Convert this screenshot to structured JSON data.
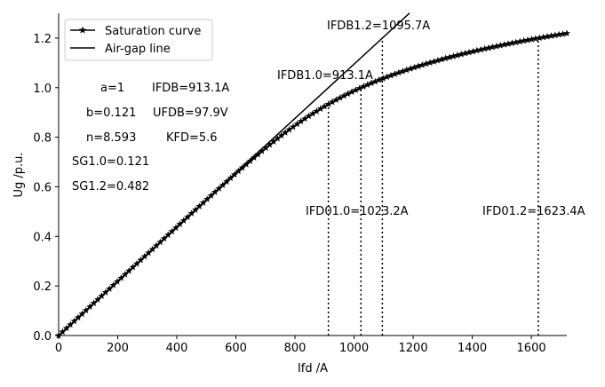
{
  "chart_data": {
    "type": "line",
    "xlabel": "Ifd /A",
    "ylabel": "Ug /p.u.",
    "xlim": [
      0,
      1720
    ],
    "ylim": [
      0,
      1.3
    ],
    "x_ticks": [
      0,
      200,
      400,
      600,
      800,
      1000,
      1200,
      1400,
      1600
    ],
    "y_ticks": [
      0.0,
      0.2,
      0.4,
      0.6,
      0.8,
      1.0,
      1.2
    ],
    "x_tick_labels": [
      "0",
      "200",
      "400",
      "600",
      "800",
      "1000",
      "1200",
      "1400",
      "1600"
    ],
    "y_tick_labels": [
      "0.0",
      "0.2",
      "0.4",
      "0.6",
      "0.8",
      "1.0",
      "1.2"
    ],
    "grid": false,
    "legend_position": "top-left",
    "series": [
      {
        "name": "Saturation curve",
        "marker": "star",
        "color": "#000000",
        "model": {
          "a": 1,
          "b": 0.121,
          "n": 8.593,
          "IFDB": 913.1
        },
        "x_range": [
          0,
          1720
        ],
        "points": 130
      },
      {
        "name": "Air-gap line",
        "marker": "none",
        "color": "#000000",
        "x": [
          0,
          1188
        ],
        "y": [
          0,
          1.301
        ]
      }
    ],
    "vertical_lines": [
      {
        "x": 913.1,
        "y": 0.932
      },
      {
        "x": 1023.2,
        "y": 1.0
      },
      {
        "x": 1095.7,
        "y": 1.2
      },
      {
        "x": 1623.4,
        "y": 1.2
      }
    ],
    "annotations": [
      {
        "text": "IFDB1.2=1095.7A",
        "x": 1095.7,
        "y": 1.235
      },
      {
        "text": "IFDB1.0=913.1A",
        "x": 913.1,
        "y": 1.035
      },
      {
        "text": "IFD01.0=1023.2A",
        "x": 1023.2,
        "y": 0.484
      },
      {
        "text": "IFD01.2=1623.4A",
        "x": 1623.4,
        "y": 0.484
      }
    ],
    "parameters": [
      {
        "text": "a=1"
      },
      {
        "text": "IFDB=913.1A"
      },
      {
        "text": "b=0.121"
      },
      {
        "text": "UFDB=97.9V"
      },
      {
        "text": "n=8.593"
      },
      {
        "text": "KFD=5.6"
      },
      {
        "text": "SG1.0=0.121"
      },
      {
        "text": "SG1.2=0.482"
      }
    ]
  }
}
